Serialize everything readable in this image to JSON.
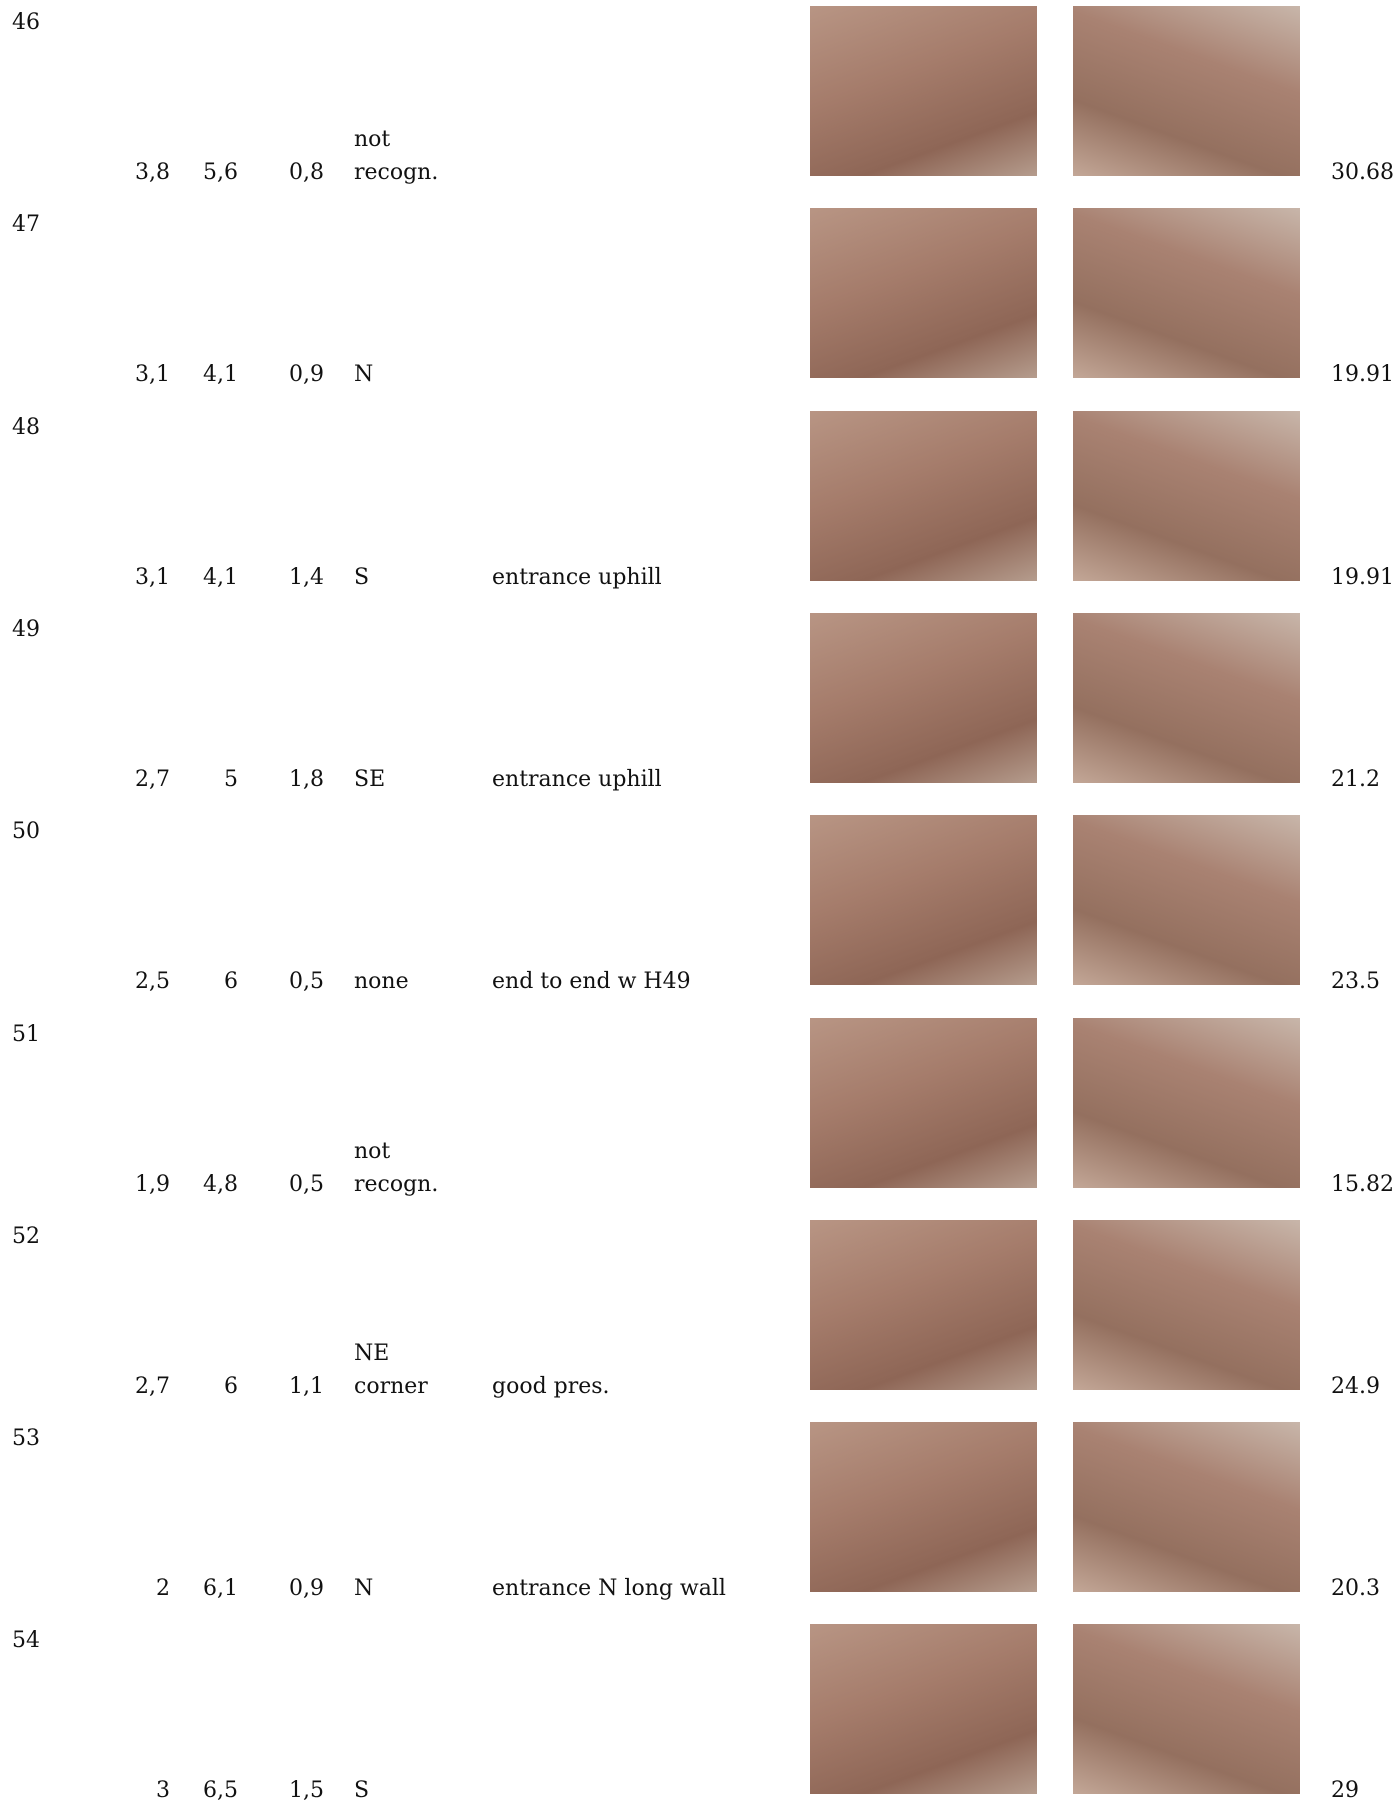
{
  "table": {
    "rows": [
      {
        "id": 46,
        "width": "3,8",
        "length": "5,6",
        "height": "0,8",
        "entrance": "not recogn.",
        "value": 30.68
      },
      {
        "id": 47,
        "width": "3,1",
        "length": "4,1",
        "height": "0,9",
        "entrance": "N",
        "value": 19.91
      },
      {
        "id": 48,
        "width": "3,1",
        "length": "4,1",
        "height": "1,4",
        "entrance": "S",
        "notes": "entrance uphill",
        "value": 19.91
      },
      {
        "id": 49,
        "width": "2,7",
        "length": "5",
        "height": "1,8",
        "entrance": "SE",
        "notes": "entrance uphill",
        "value": 21.2
      },
      {
        "id": 50,
        "width": "2,5",
        "length": "6",
        "height": "0,5",
        "entrance": "none",
        "notes": "end to end w H49",
        "value": 23.5
      },
      {
        "id": 51,
        "width": "1,9",
        "length": "4,8",
        "height": "0,5",
        "entrance": "not recogn.",
        "value": 15.82
      },
      {
        "id": 52,
        "width": "2,7",
        "length": "6",
        "height": "1,1",
        "entrance": "NE corner",
        "notes": "good pres.",
        "value": 24.9
      },
      {
        "id": 53,
        "width": "2",
        "length": "6,1",
        "height": "0,9",
        "entrance": "N",
        "notes": "entrance N long wall",
        "value": 20.3
      },
      {
        "id": 54,
        "width": "3",
        "length": "6,5",
        "height": "1,5",
        "entrance": "S",
        "value": 29
      }
    ]
  }
}
